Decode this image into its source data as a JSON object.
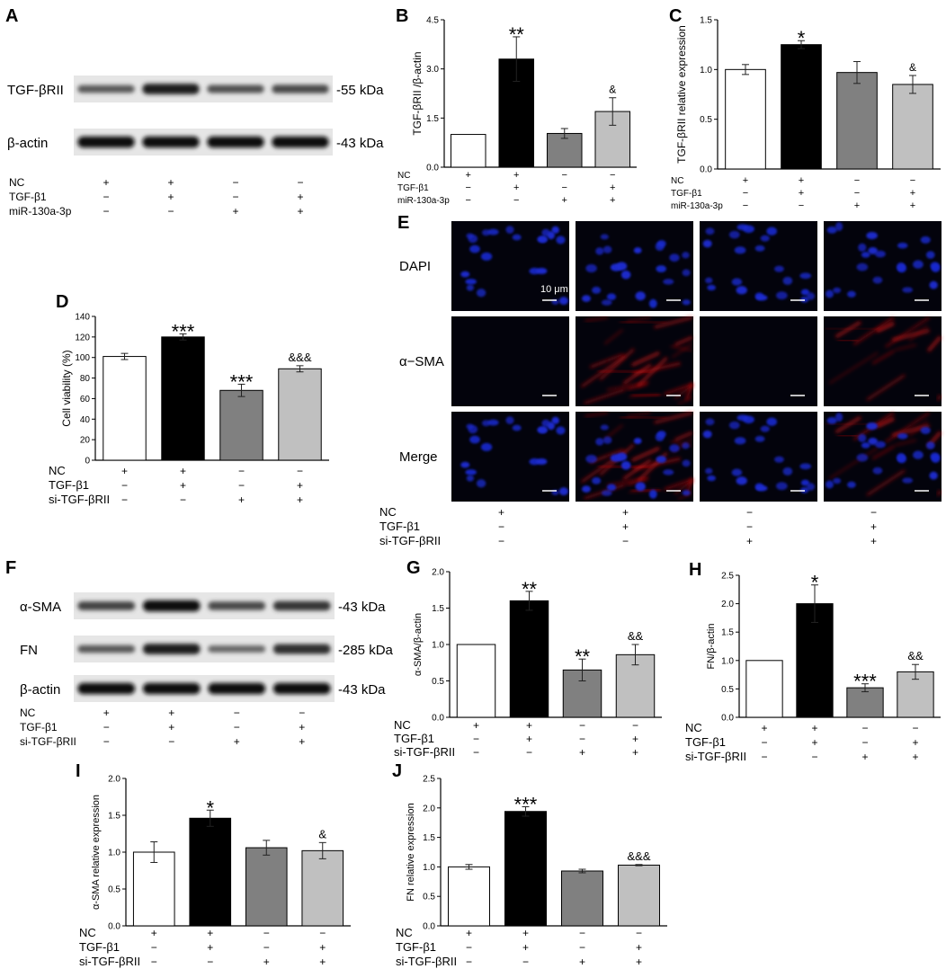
{
  "panel_letters": [
    "A",
    "B",
    "C",
    "D",
    "E",
    "F",
    "G",
    "H",
    "I",
    "J"
  ],
  "colors": {
    "bar_fills": [
      "#ffffff",
      "#000000",
      "#808080",
      "#c0c0c0"
    ],
    "nucleus": "#1a2ad0",
    "actin": "#d01818",
    "micro_bg": "#03030c"
  },
  "blot_A": {
    "rows": [
      {
        "label": "TGF-βRII",
        "kda": "-55 kDa",
        "intensity": [
          0.45,
          0.85,
          0.5,
          0.55
        ]
      },
      {
        "label": "β-actin",
        "kda": "-43 kDa",
        "intensity": [
          0.95,
          0.95,
          0.95,
          0.95
        ]
      }
    ],
    "conditions": [
      {
        "label": "NC",
        "signs": [
          "+",
          "+",
          "−",
          "−"
        ]
      },
      {
        "label": "TGF-β1",
        "signs": [
          "−",
          "+",
          "−",
          "+"
        ]
      },
      {
        "label": "miR-130a-3p",
        "signs": [
          "−",
          "−",
          "+",
          "+"
        ]
      }
    ]
  },
  "blot_F": {
    "rows": [
      {
        "label": "α-SMA",
        "kda": "-43 kDa",
        "intensity": [
          0.6,
          0.95,
          0.55,
          0.7
        ]
      },
      {
        "label": "FN",
        "kda": "-285 kDa",
        "intensity": [
          0.45,
          0.85,
          0.35,
          0.75
        ]
      },
      {
        "label": "β-actin",
        "kda": "-43 kDa",
        "intensity": [
          0.95,
          0.95,
          0.95,
          0.95
        ]
      }
    ],
    "conditions": [
      {
        "label": "NC",
        "signs": [
          "+",
          "+",
          "−",
          "−"
        ]
      },
      {
        "label": "TGF-β1",
        "signs": [
          "−",
          "+",
          "−",
          "+"
        ]
      },
      {
        "label": "si-TGF-βRII",
        "signs": [
          "−",
          "−",
          "+",
          "+"
        ]
      }
    ]
  },
  "micro_E": {
    "row_labels": [
      "DAPI",
      "α−SMA",
      "Merge"
    ],
    "scale_label": "10 μm",
    "red_level": [
      0.0,
      0.9,
      0.0,
      0.5
    ],
    "conditions": [
      {
        "label": "NC",
        "signs": [
          "+",
          "+",
          "−",
          "−"
        ]
      },
      {
        "label": "TGF-β1",
        "signs": [
          "−",
          "+",
          "−",
          "+"
        ]
      },
      {
        "label": "si-TGF-βRII",
        "signs": [
          "−",
          "−",
          "+",
          "+"
        ]
      }
    ]
  },
  "chart_data": [
    {
      "panel": "B",
      "type": "bar",
      "ylabel": "TGF-βRII /β-actin",
      "ylim": [
        0,
        4.5
      ],
      "yticks": [
        "0.0",
        "1.5",
        "3.0",
        "4.5"
      ],
      "values": [
        1.0,
        3.3,
        1.03,
        1.7
      ],
      "errors": [
        0,
        0.68,
        0.15,
        0.42
      ],
      "annotations": [
        "",
        "**",
        "",
        "&"
      ],
      "conditions": [
        {
          "label": "NC",
          "signs": [
            "+",
            "+",
            "−",
            "−"
          ]
        },
        {
          "label": "TGF-β1",
          "signs": [
            "−",
            "+",
            "−",
            "+"
          ]
        },
        {
          "label": "miR-130a-3p",
          "signs": [
            "−",
            "−",
            "+",
            "+"
          ]
        }
      ]
    },
    {
      "panel": "C",
      "type": "bar",
      "ylabel": "TGF-βRII relative expression",
      "ylim": [
        0,
        1.5
      ],
      "yticks": [
        "0.0",
        "0.5",
        "1.0",
        "1.5"
      ],
      "values": [
        1.0,
        1.25,
        0.97,
        0.85
      ],
      "errors": [
        0.05,
        0.04,
        0.11,
        0.09
      ],
      "annotations": [
        "",
        "*",
        "",
        "&"
      ],
      "conditions": [
        {
          "label": "NC",
          "signs": [
            "+",
            "+",
            "−",
            "−"
          ]
        },
        {
          "label": "TGF-β1",
          "signs": [
            "−",
            "+",
            "−",
            "+"
          ]
        },
        {
          "label": "miR-130a-3p",
          "signs": [
            "−",
            "−",
            "+",
            "+"
          ]
        }
      ]
    },
    {
      "panel": "D",
      "type": "bar",
      "ylabel": "Cell viability (%)",
      "ylim": [
        0,
        140
      ],
      "yticks": [
        "0",
        "20",
        "40",
        "60",
        "80",
        "100",
        "120",
        "140"
      ],
      "values": [
        101,
        120,
        68,
        89
      ],
      "errors": [
        3,
        3,
        6,
        3
      ],
      "annotations": [
        "",
        "***",
        "***",
        "&&&"
      ],
      "conditions": [
        {
          "label": "NC",
          "signs": [
            "+",
            "+",
            "−",
            "−"
          ]
        },
        {
          "label": "TGF-β1",
          "signs": [
            "−",
            "+",
            "−",
            "+"
          ]
        },
        {
          "label": "si-TGF-βRII",
          "signs": [
            "−",
            "−",
            "+",
            "+"
          ]
        }
      ]
    },
    {
      "panel": "G",
      "type": "bar",
      "ylabel": "α-SMA/β-actin",
      "ylim": [
        0,
        2.0
      ],
      "yticks": [
        "0.0",
        "0.5",
        "1.0",
        "1.5",
        "2.0"
      ],
      "values": [
        1.0,
        1.6,
        0.65,
        0.86
      ],
      "errors": [
        0,
        0.13,
        0.15,
        0.14
      ],
      "annotations": [
        "",
        "**",
        "**",
        "&&"
      ],
      "conditions": [
        {
          "label": "NC",
          "signs": [
            "+",
            "+",
            "−",
            "−"
          ]
        },
        {
          "label": "TGF-β1",
          "signs": [
            "−",
            "+",
            "−",
            "+"
          ]
        },
        {
          "label": "si-TGF-βRII",
          "signs": [
            "−",
            "−",
            "+",
            "+"
          ]
        }
      ]
    },
    {
      "panel": "H",
      "type": "bar",
      "ylabel": "FN/β-actin",
      "ylim": [
        0,
        2.5
      ],
      "yticks": [
        "0.0",
        "0.5",
        "1.0",
        "1.5",
        "2.0",
        "2.5"
      ],
      "values": [
        1.0,
        2.0,
        0.52,
        0.8
      ],
      "errors": [
        0,
        0.33,
        0.07,
        0.13
      ],
      "annotations": [
        "",
        "*",
        "***",
        "&&"
      ],
      "conditions": [
        {
          "label": "NC",
          "signs": [
            "+",
            "+",
            "−",
            "−"
          ]
        },
        {
          "label": "TGF-β1",
          "signs": [
            "−",
            "+",
            "−",
            "+"
          ]
        },
        {
          "label": "si-TGF-βRII",
          "signs": [
            "−",
            "−",
            "+",
            "+"
          ]
        }
      ]
    },
    {
      "panel": "I",
      "type": "bar",
      "ylabel": "α-SMA relative expression",
      "ylim": [
        0,
        2.0
      ],
      "yticks": [
        "0.0",
        "0.5",
        "1.0",
        "1.5",
        "2.0"
      ],
      "values": [
        1.0,
        1.46,
        1.06,
        1.02
      ],
      "errors": [
        0.14,
        0.11,
        0.1,
        0.11
      ],
      "annotations": [
        "",
        "*",
        "",
        "&"
      ],
      "conditions": [
        {
          "label": "NC",
          "signs": [
            "+",
            "+",
            "−",
            "−"
          ]
        },
        {
          "label": "TGF-β1",
          "signs": [
            "−",
            "+",
            "−",
            "+"
          ]
        },
        {
          "label": "si-TGF-βRII",
          "signs": [
            "−",
            "−",
            "+",
            "+"
          ]
        }
      ]
    },
    {
      "panel": "J",
      "type": "bar",
      "ylabel": "FN relative expression",
      "ylim": [
        0,
        2.5
      ],
      "yticks": [
        "0.0",
        "0.5",
        "1.0",
        "1.5",
        "2.0",
        "2.5"
      ],
      "values": [
        1.0,
        1.94,
        0.93,
        1.03
      ],
      "errors": [
        0.04,
        0.08,
        0.03,
        0.01
      ],
      "annotations": [
        "",
        "***",
        "",
        "&&&"
      ],
      "conditions": [
        {
          "label": "NC",
          "signs": [
            "+",
            "+",
            "−",
            "−"
          ]
        },
        {
          "label": "TGF-β1",
          "signs": [
            "−",
            "+",
            "−",
            "+"
          ]
        },
        {
          "label": "si-TGF-βRII",
          "signs": [
            "−",
            "−",
            "+",
            "+"
          ]
        }
      ]
    }
  ]
}
